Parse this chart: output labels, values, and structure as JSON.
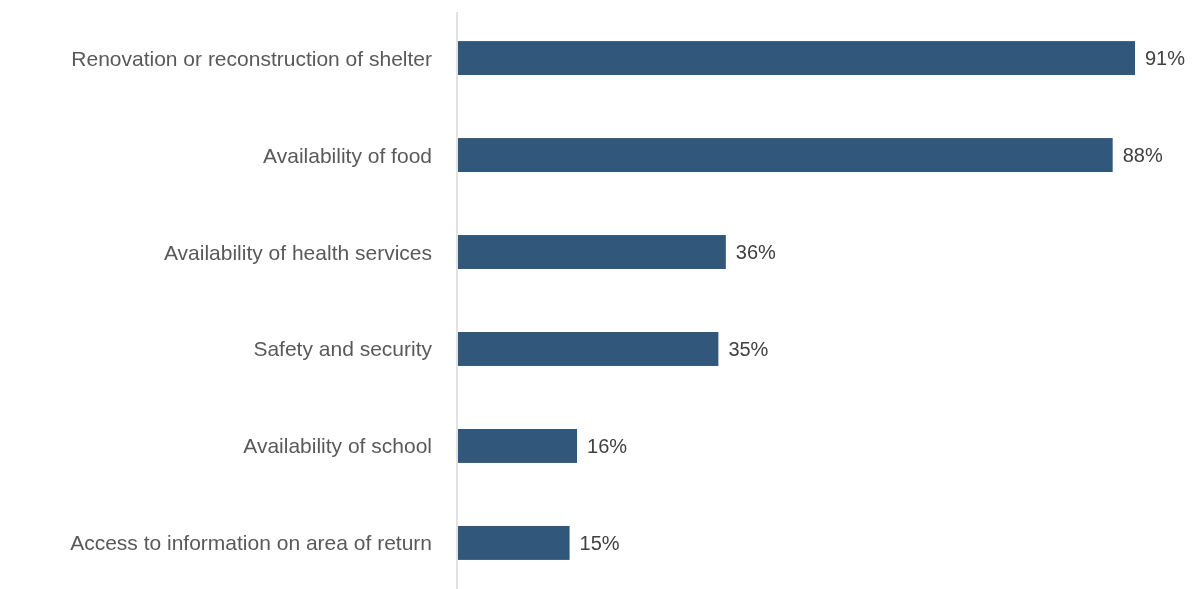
{
  "chart_data": {
    "type": "bar",
    "orientation": "horizontal",
    "categories": [
      "Renovation or reconstruction of shelter",
      "Availability of food",
      "Availability of health services",
      "Safety and security",
      "Availability of school",
      "Access to information on area of return"
    ],
    "values": [
      91,
      88,
      36,
      35,
      16,
      15
    ],
    "value_labels": [
      "91%",
      "88%",
      "36%",
      "35%",
      "16%",
      "15%"
    ],
    "color": "#31587a"
  }
}
